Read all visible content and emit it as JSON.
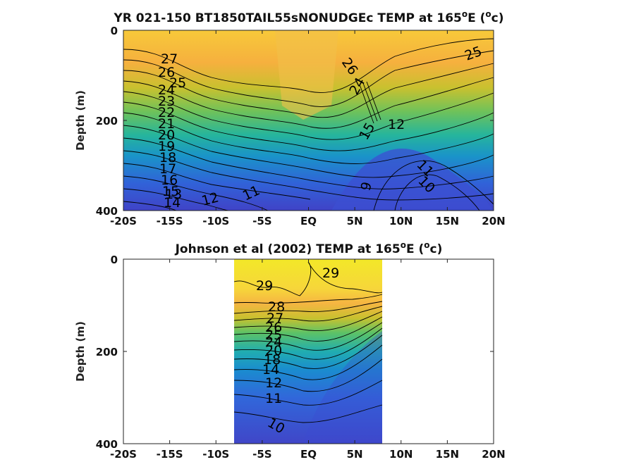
{
  "chart_data": [
    {
      "type": "contour",
      "title": "YR 021-150 BT1850TAIL55sNONUDGEc TEMP at 165",
      "title_deg": "o",
      "title_mid": "E (",
      "title_unit": "c)",
      "ylabel": "Depth (m)",
      "xticks": [
        "-20S",
        "-15S",
        "-10S",
        "-5S",
        "EQ",
        "5N",
        "10N",
        "15N",
        "20N"
      ],
      "yticks": [
        "0",
        "200",
        "400"
      ],
      "xlim": [
        -20,
        20
      ],
      "ylim": [
        400,
        0
      ],
      "contour_labels": [
        "27",
        "26",
        "25",
        "24",
        "23",
        "22",
        "21",
        "20",
        "19",
        "18",
        "17",
        "16",
        "15",
        "14",
        "13",
        "12",
        "11",
        "26",
        "25",
        "24",
        "12",
        "11",
        "10",
        "9",
        "15"
      ]
    },
    {
      "type": "contour",
      "title": "Johnson et al (2002) TEMP at 165",
      "title_deg": "o",
      "title_mid": "E (",
      "title_unit": "c)",
      "ylabel": "Depth (m)",
      "xticks": [
        "-20S",
        "-15S",
        "-10S",
        "-5S",
        "EQ",
        "5N",
        "10N",
        "15N",
        "20N"
      ],
      "yticks": [
        "0",
        "200",
        "400"
      ],
      "xlim": [
        -20,
        20
      ],
      "ylim": [
        400,
        0
      ],
      "data_x_range": [
        -8,
        8
      ],
      "contour_labels": [
        "29",
        "29",
        "28",
        "27",
        "26",
        "25",
        "24",
        "20",
        "18",
        "14",
        "12",
        "11",
        "10"
      ]
    }
  ],
  "colors": {
    "warm": "#f5e642",
    "cool": "#3a3fc7"
  }
}
